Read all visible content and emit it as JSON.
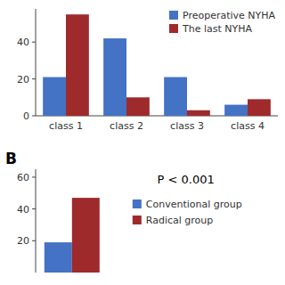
{
  "chart_data": [
    {
      "type": "bar",
      "categories": [
        "class 1",
        "class 2",
        "class 3",
        "class 4"
      ],
      "series": [
        {
          "name": "Preoperative NYHA",
          "color": "#4472C4",
          "values": [
            21,
            42,
            21,
            6
          ]
        },
        {
          "name": "The last NYHA",
          "color": "#9E2A2B",
          "values": [
            55,
            10,
            3,
            9
          ]
        }
      ],
      "ylim": [
        0,
        58
      ],
      "yticks": [
        0,
        20,
        40
      ],
      "legend": "upper right"
    },
    {
      "type": "bar",
      "categories": [
        null
      ],
      "series": [
        {
          "name": "Conventional group",
          "color": "#4472C4",
          "values": [
            19
          ]
        },
        {
          "name": "Radical group",
          "color": "#9E2A2B",
          "values": [
            47
          ]
        }
      ],
      "ylim": [
        0,
        65
      ],
      "yticks": [
        20,
        40,
        60
      ],
      "legend": "right",
      "tick_labels": "y",
      "annotations": [
        {
          "text": "B"
        },
        {
          "text": "P < 0.001"
        }
      ]
    }
  ]
}
